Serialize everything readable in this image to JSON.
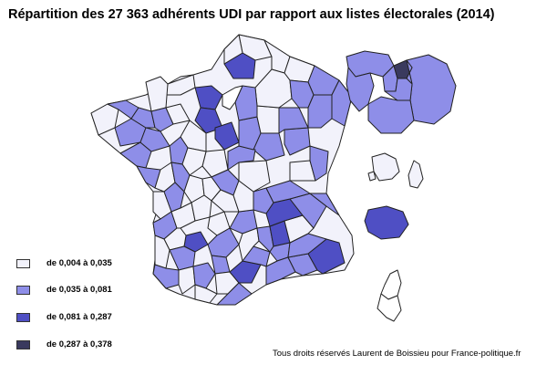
{
  "title": "Répartition des 27 363 adhérents UDI par rapport aux listes électorales (2014)",
  "legend": [
    {
      "label": "de 0,004 à 0,035",
      "color": "#f2f2fb"
    },
    {
      "label": "de 0,035 à 0,081",
      "color": "#8e8ee8"
    },
    {
      "label": "de 0,081 à 0,287",
      "color": "#4f4fc4"
    },
    {
      "label": "de 0,287 à 0,378",
      "color": "#3a3a5e"
    }
  ],
  "credits": "Tous droits réservés Laurent de Boissieu pour France-politique.fr"
}
